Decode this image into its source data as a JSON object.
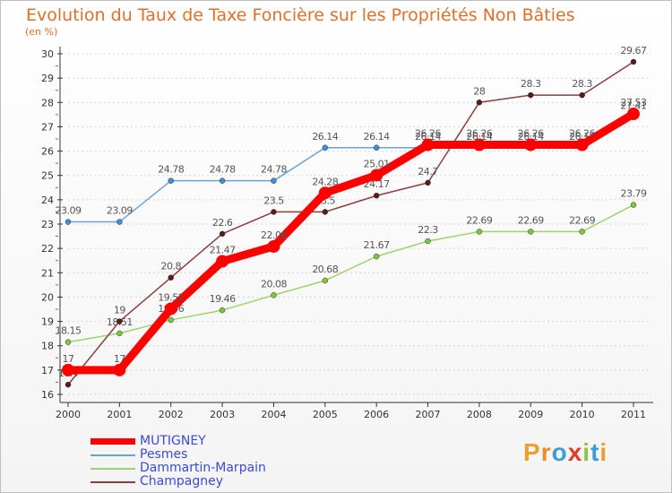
{
  "header": {
    "title": "Evolution du Taux de Taxe Foncière sur les Propriétés Non Bâties",
    "unit": "(en %)"
  },
  "colors": {
    "title": "#e0702a",
    "axis": "#333333",
    "grid": "#d6d6d6"
  },
  "brand": {
    "letters": [
      "P",
      "r",
      "o",
      "x",
      "i",
      "t",
      "i"
    ],
    "colors": [
      "#e8a030",
      "#f08a24",
      "#3a9fd8",
      "#e23a2a",
      "#8cc63f",
      "#3a9fd8",
      "#e8a030"
    ]
  },
  "chart_data": {
    "type": "line",
    "title": "Evolution du Taux de Taxe Foncière sur les Propriétés Non Bâties",
    "ylabel": "(en %)",
    "xlabel": "",
    "x": [
      "2000",
      "2001",
      "2002",
      "2003",
      "2004",
      "2005",
      "2006",
      "2007",
      "2008",
      "2009",
      "2010",
      "2011"
    ],
    "ylim": [
      16,
      30
    ],
    "yticks": [
      "16",
      "17",
      "18",
      "19",
      "20",
      "21",
      "22",
      "23",
      "24",
      "25",
      "26",
      "27",
      "28",
      "29",
      "30"
    ],
    "grid": "horizontal dotted",
    "legend_position": "bottom-left",
    "series": [
      {
        "name": "Pesmes",
        "color": "#6fa3cf",
        "marker": "#3f8fd2",
        "values": [
          23.09,
          23.09,
          24.78,
          24.78,
          24.78,
          26.14,
          26.14,
          26.14,
          26.14,
          26.14,
          26.14,
          27.41
        ],
        "labels": [
          "23.09",
          "23.09",
          "24.78",
          "24.78",
          "24.78",
          "26.14",
          "26.14",
          "26.14",
          "26.14",
          "26.14",
          "26.14",
          "27.41"
        ]
      },
      {
        "name": "Dammartin-Marpain",
        "color": "#9ed46f",
        "marker": "#7dc83a",
        "values": [
          18.15,
          18.51,
          19.06,
          19.46,
          20.08,
          20.68,
          21.67,
          22.3,
          22.69,
          22.69,
          22.69,
          23.79
        ],
        "labels": [
          "18.15",
          "18.51",
          "19.06",
          "19.46",
          "20.08",
          "20.68",
          "21.67",
          "22.3",
          "22.69",
          "22.69",
          "22.69",
          "23.79"
        ]
      },
      {
        "name": "Champagney",
        "color": "#8a3e3e",
        "marker": "#5c1a1a",
        "values": [
          16.4,
          19.0,
          20.8,
          22.6,
          23.5,
          23.5,
          24.17,
          24.7,
          28.0,
          28.3,
          28.3,
          29.67
        ],
        "labels": [
          "16.4",
          "19",
          "20.8",
          "22.6",
          "23.5",
          "23.5",
          "24.17",
          "24.7",
          "28",
          "28.3",
          "28.3",
          "29.67"
        ]
      },
      {
        "name": "MUTIGNEY",
        "color": "#ff0000",
        "marker": "#ff0000",
        "values": [
          17.0,
          17.0,
          19.52,
          21.47,
          22.08,
          24.28,
          25.01,
          26.26,
          26.26,
          26.26,
          26.26,
          27.53
        ],
        "labels": [
          "17",
          "17",
          "19.52",
          "21.47",
          "22.08",
          "24.28",
          "25.01",
          "26.26",
          "26.26",
          "26.26",
          "26.26",
          "27.53"
        ]
      }
    ],
    "legend": [
      {
        "name": "MUTIGNEY",
        "color": "#ff0000",
        "weight": "thick"
      },
      {
        "name": "Pesmes",
        "color": "#6fa3cf",
        "weight": "thin"
      },
      {
        "name": "Dammartin-Marpain",
        "color": "#9ed46f",
        "weight": "thin"
      },
      {
        "name": "Champagney",
        "color": "#8a3e3e",
        "weight": "thin"
      }
    ]
  }
}
